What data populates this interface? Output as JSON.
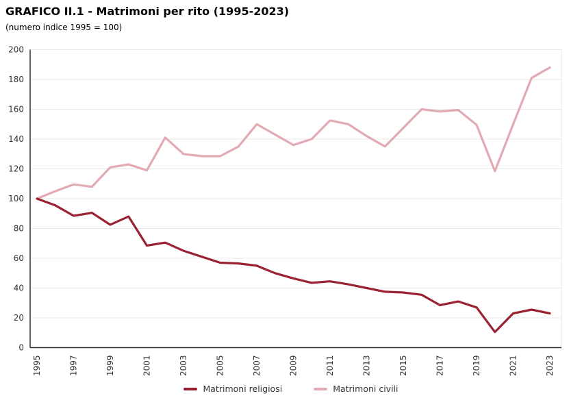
{
  "header": {
    "title": "GRAFICO II.1 - Matrimoni per rito (1995-2023)",
    "subtitle": "(numero indice 1995 = 100)"
  },
  "chart_data": {
    "type": "line",
    "title": "GRAFICO II.1 - Matrimoni per rito (1995-2023)",
    "subtitle": "(numero indice 1995 = 100)",
    "x": [
      1995,
      1996,
      1997,
      1998,
      1999,
      2000,
      2001,
      2002,
      2003,
      2004,
      2005,
      2006,
      2007,
      2008,
      2009,
      2010,
      2011,
      2012,
      2013,
      2014,
      2015,
      2016,
      2017,
      2018,
      2019,
      2020,
      2021,
      2022,
      2023
    ],
    "x_ticks": [
      1995,
      1997,
      1999,
      2001,
      2003,
      2005,
      2007,
      2009,
      2011,
      2013,
      2015,
      2017,
      2019,
      2021,
      2023
    ],
    "y_ticks": [
      0,
      20,
      40,
      60,
      80,
      100,
      120,
      140,
      160,
      180,
      200
    ],
    "ylim": [
      0,
      200
    ],
    "grid": "horizontal",
    "legend_position": "bottom-center",
    "series": [
      {
        "name": "Matrimoni religiosi",
        "color": "#9a2333",
        "values": [
          100,
          95.5,
          88.5,
          90.5,
          82.5,
          88,
          68.5,
          70.5,
          65,
          61,
          57,
          56.5,
          55,
          50,
          46.5,
          43.5,
          44.5,
          42.5,
          40,
          37.5,
          37,
          35.5,
          28.5,
          31,
          27,
          10.5,
          23,
          25.5,
          23
        ]
      },
      {
        "name": "Matrimoni civili",
        "color": "#e2aab3",
        "values": [
          100,
          105,
          109.5,
          108,
          121,
          123,
          119,
          141,
          130,
          128.5,
          128.5,
          135,
          150,
          143,
          136,
          140,
          152.5,
          150,
          142,
          135,
          147.5,
          160,
          158.5,
          159.5,
          149.5,
          118.5,
          150,
          181,
          188
        ]
      }
    ],
    "axis_color": "#2f2f2f",
    "grid_color": "#e8e8e8",
    "tick_label_color": "#333333"
  }
}
